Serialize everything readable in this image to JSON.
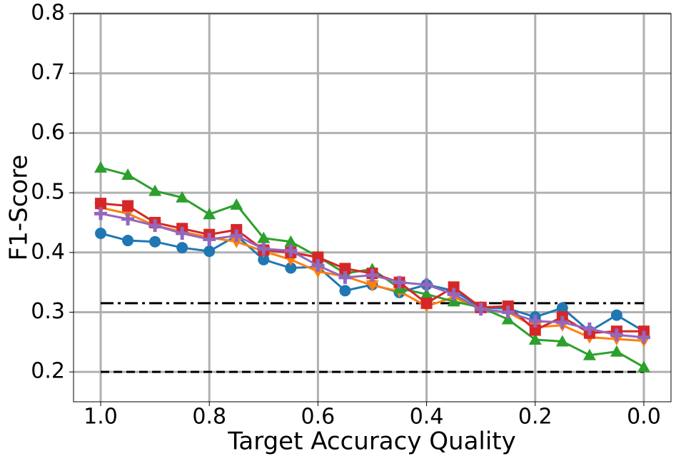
{
  "chart_data": {
    "type": "line",
    "xlabel": "Target Accuracy Quality",
    "ylabel": "F1-Score",
    "x": [
      1.0,
      0.95,
      0.9,
      0.85,
      0.8,
      0.75,
      0.7,
      0.65,
      0.6,
      0.55,
      0.5,
      0.45,
      0.4,
      0.35,
      0.3,
      0.25,
      0.2,
      0.15,
      0.1,
      0.05,
      0.0
    ],
    "series": [
      {
        "color": "#1f77b4",
        "marker": "circle",
        "values": [
          0.432,
          0.42,
          0.418,
          0.408,
          0.402,
          0.428,
          0.388,
          0.374,
          0.376,
          0.336,
          0.346,
          0.333,
          0.346,
          0.336,
          0.308,
          0.306,
          0.292,
          0.307,
          0.268,
          0.295,
          0.268
        ]
      },
      {
        "color": "#ff7f0e",
        "marker": "triangle-down",
        "values": [
          0.475,
          0.465,
          0.445,
          0.435,
          0.425,
          0.418,
          0.402,
          0.388,
          0.368,
          0.36,
          0.345,
          0.335,
          0.31,
          0.325,
          0.305,
          0.3,
          0.275,
          0.278,
          0.258,
          0.255,
          0.252
        ]
      },
      {
        "color": "#2ca02c",
        "marker": "triangle-up",
        "values": [
          0.542,
          0.53,
          0.503,
          0.492,
          0.464,
          0.48,
          0.424,
          0.418,
          0.393,
          0.365,
          0.372,
          0.34,
          0.33,
          0.318,
          0.308,
          0.288,
          0.254,
          0.251,
          0.228,
          0.234,
          0.208
        ]
      },
      {
        "color": "#d62728",
        "marker": "square",
        "values": [
          0.482,
          0.478,
          0.45,
          0.44,
          0.43,
          0.438,
          0.404,
          0.4,
          0.392,
          0.373,
          0.365,
          0.35,
          0.315,
          0.342,
          0.308,
          0.31,
          0.27,
          0.292,
          0.265,
          0.268,
          0.268
        ]
      },
      {
        "color": "#9467bd",
        "marker": "plus",
        "values": [
          0.465,
          0.456,
          0.445,
          0.432,
          0.422,
          0.428,
          0.406,
          0.403,
          0.378,
          0.358,
          0.362,
          0.35,
          0.346,
          0.33,
          0.305,
          0.3,
          0.285,
          0.283,
          0.272,
          0.262,
          0.258
        ]
      }
    ],
    "hlines": [
      {
        "y": 0.315,
        "style": "dashdot",
        "color": "#000000"
      },
      {
        "y": 0.2,
        "style": "dashed",
        "color": "#000000"
      }
    ],
    "xlim": [
      1.05,
      -0.05
    ],
    "xticks": [
      {
        "value": 1,
        "label": "1.0"
      },
      0.8,
      0.6,
      0.4,
      0.2,
      {
        "value": 0,
        "label": "0.0"
      }
    ],
    "ylim": [
      0.15,
      0.8
    ],
    "yticks": [
      0.2,
      0.3,
      0.4,
      0.5,
      0.6,
      0.7,
      0.8
    ],
    "grid": true
  }
}
